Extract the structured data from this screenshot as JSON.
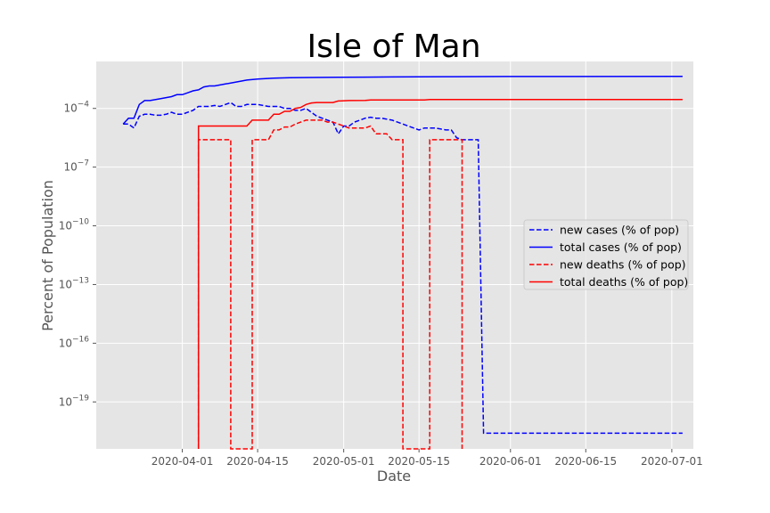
{
  "chart_data": {
    "type": "line",
    "title": "Isle of Man",
    "xlabel": "Date",
    "ylabel": "Percent of Population",
    "x_ticks": [
      "2020-04-01",
      "2020-04-15",
      "2020-05-01",
      "2020-05-15",
      "2020-06-01",
      "2020-06-15",
      "2020-07-01"
    ],
    "y_scale": "log",
    "y_ticks": [
      "10^{-19}",
      "10^{-16}",
      "10^{-13}",
      "10^{-10}",
      "10^{-7}",
      "10^{-4}"
    ],
    "xlim": [
      "2020-03-16",
      "2020-07-05"
    ],
    "ylim_log10": [
      -21.4,
      -1.6
    ],
    "grid": true,
    "legend_position": "center-right",
    "series": [
      {
        "name": "new cases (% of pop)",
        "color": "#0000ff",
        "style": "dashed",
        "points": [
          [
            "2020-03-21",
            -4.8
          ],
          [
            "2020-03-22",
            -4.8
          ],
          [
            "2020-03-23",
            -5.0
          ],
          [
            "2020-03-24",
            -4.4
          ],
          [
            "2020-03-25",
            -4.3
          ],
          [
            "2020-03-26",
            -4.3
          ],
          [
            "2020-03-27",
            -4.35
          ],
          [
            "2020-03-28",
            -4.35
          ],
          [
            "2020-03-29",
            -4.3
          ],
          [
            "2020-03-30",
            -4.2
          ],
          [
            "2020-03-31",
            -4.3
          ],
          [
            "2020-04-01",
            -4.3
          ],
          [
            "2020-04-02",
            -4.2
          ],
          [
            "2020-04-03",
            -4.1
          ],
          [
            "2020-04-04",
            -3.9
          ],
          [
            "2020-04-05",
            -3.9
          ],
          [
            "2020-04-06",
            -3.9
          ],
          [
            "2020-04-07",
            -3.85
          ],
          [
            "2020-04-08",
            -3.9
          ],
          [
            "2020-04-09",
            -3.8
          ],
          [
            "2020-04-10",
            -3.7
          ],
          [
            "2020-04-11",
            -3.9
          ],
          [
            "2020-04-12",
            -3.9
          ],
          [
            "2020-04-13",
            -3.8
          ],
          [
            "2020-04-14",
            -3.8
          ],
          [
            "2020-04-15",
            -3.8
          ],
          [
            "2020-04-16",
            -3.85
          ],
          [
            "2020-04-17",
            -3.9
          ],
          [
            "2020-04-18",
            -3.9
          ],
          [
            "2020-04-19",
            -3.9
          ],
          [
            "2020-04-20",
            -4.0
          ],
          [
            "2020-04-21",
            -4.0
          ],
          [
            "2020-04-22",
            -4.1
          ],
          [
            "2020-04-23",
            -4.1
          ],
          [
            "2020-04-24",
            -4.0
          ],
          [
            "2020-04-25",
            -4.2
          ],
          [
            "2020-04-26",
            -4.4
          ],
          [
            "2020-04-27",
            -4.5
          ],
          [
            "2020-04-28",
            -4.6
          ],
          [
            "2020-04-29",
            -4.7
          ],
          [
            "2020-04-30",
            -5.3
          ],
          [
            "2020-05-01",
            -4.9
          ],
          [
            "2020-05-02",
            -4.9
          ],
          [
            "2020-05-03",
            -4.7
          ],
          [
            "2020-05-04",
            -4.6
          ],
          [
            "2020-05-05",
            -4.5
          ],
          [
            "2020-05-06",
            -4.45
          ],
          [
            "2020-05-07",
            -4.5
          ],
          [
            "2020-05-08",
            -4.5
          ],
          [
            "2020-05-09",
            -4.55
          ],
          [
            "2020-05-10",
            -4.6
          ],
          [
            "2020-05-11",
            -4.7
          ],
          [
            "2020-05-12",
            -4.8
          ],
          [
            "2020-05-13",
            -4.9
          ],
          [
            "2020-05-14",
            -5.0
          ],
          [
            "2020-05-15",
            -5.1
          ],
          [
            "2020-05-16",
            -5.0
          ],
          [
            "2020-05-17",
            -5.0
          ],
          [
            "2020-05-18",
            -5.0
          ],
          [
            "2020-05-19",
            -5.05
          ],
          [
            "2020-05-20",
            -5.1
          ],
          [
            "2020-05-21",
            -5.1
          ],
          [
            "2020-05-22",
            -5.5
          ],
          [
            "2020-05-23",
            -5.6
          ],
          [
            "2020-05-24",
            -5.6
          ],
          [
            "2020-05-25",
            -5.6
          ],
          [
            "2020-05-26",
            -5.6
          ],
          [
            "2020-05-27",
            -20.6
          ],
          [
            "2020-07-03",
            -20.6
          ]
        ]
      },
      {
        "name": "total cases (% of pop)",
        "color": "#0000ff",
        "style": "solid",
        "points": [
          [
            "2020-03-21",
            -4.8
          ],
          [
            "2020-03-22",
            -4.5
          ],
          [
            "2020-03-23",
            -4.5
          ],
          [
            "2020-03-24",
            -3.8
          ],
          [
            "2020-03-25",
            -3.6
          ],
          [
            "2020-03-26",
            -3.6
          ],
          [
            "2020-03-28",
            -3.5
          ],
          [
            "2020-03-30",
            -3.4
          ],
          [
            "2020-03-31",
            -3.3
          ],
          [
            "2020-04-01",
            -3.3
          ],
          [
            "2020-04-02",
            -3.2
          ],
          [
            "2020-04-03",
            -3.1
          ],
          [
            "2020-04-04",
            -3.05
          ],
          [
            "2020-04-05",
            -2.9
          ],
          [
            "2020-04-06",
            -2.85
          ],
          [
            "2020-04-07",
            -2.85
          ],
          [
            "2020-04-09",
            -2.75
          ],
          [
            "2020-04-10",
            -2.7
          ],
          [
            "2020-04-12",
            -2.6
          ],
          [
            "2020-04-13",
            -2.55
          ],
          [
            "2020-04-15",
            -2.5
          ],
          [
            "2020-04-18",
            -2.45
          ],
          [
            "2020-04-21",
            -2.43
          ],
          [
            "2020-04-25",
            -2.42
          ],
          [
            "2020-04-30",
            -2.41
          ],
          [
            "2020-05-05",
            -2.4
          ],
          [
            "2020-05-10",
            -2.39
          ],
          [
            "2020-05-20",
            -2.38
          ],
          [
            "2020-05-31",
            -2.37
          ],
          [
            "2020-07-03",
            -2.36
          ]
        ]
      },
      {
        "name": "new deaths (% of pop)",
        "color": "#ff0000",
        "style": "dashed",
        "points": [
          [
            "2020-04-04",
            -21.4
          ],
          [
            "2020-04-04",
            -5.6
          ],
          [
            "2020-04-10",
            -5.6
          ],
          [
            "2020-04-10",
            -21.4
          ],
          [
            "2020-04-14",
            -21.4
          ],
          [
            "2020-04-14",
            -5.6
          ],
          [
            "2020-04-17",
            -5.6
          ],
          [
            "2020-04-18",
            -5.1
          ],
          [
            "2020-04-19",
            -5.1
          ],
          [
            "2020-04-20",
            -4.95
          ],
          [
            "2020-04-21",
            -4.95
          ],
          [
            "2020-04-22",
            -4.8
          ],
          [
            "2020-04-23",
            -4.7
          ],
          [
            "2020-04-24",
            -4.6
          ],
          [
            "2020-04-25",
            -4.6
          ],
          [
            "2020-04-26",
            -4.6
          ],
          [
            "2020-04-27",
            -4.6
          ],
          [
            "2020-04-28",
            -4.7
          ],
          [
            "2020-04-29",
            -4.7
          ],
          [
            "2020-04-30",
            -4.8
          ],
          [
            "2020-05-01",
            -4.9
          ],
          [
            "2020-05-02",
            -5.0
          ],
          [
            "2020-05-03",
            -5.0
          ],
          [
            "2020-05-04",
            -5.0
          ],
          [
            "2020-05-05",
            -5.0
          ],
          [
            "2020-05-06",
            -4.9
          ],
          [
            "2020-05-07",
            -5.3
          ],
          [
            "2020-05-08",
            -5.3
          ],
          [
            "2020-05-09",
            -5.3
          ],
          [
            "2020-05-10",
            -5.6
          ],
          [
            "2020-05-12",
            -5.6
          ],
          [
            "2020-05-12",
            -21.4
          ],
          [
            "2020-05-17",
            -21.4
          ],
          [
            "2020-05-17",
            -5.6
          ],
          [
            "2020-05-23",
            -5.6
          ],
          [
            "2020-05-23",
            -21.4
          ]
        ]
      },
      {
        "name": "total deaths (% of pop)",
        "color": "#ff0000",
        "style": "solid",
        "points": [
          [
            "2020-04-04",
            -21.4
          ],
          [
            "2020-04-04",
            -4.9
          ],
          [
            "2020-04-13",
            -4.9
          ],
          [
            "2020-04-14",
            -4.6
          ],
          [
            "2020-04-17",
            -4.6
          ],
          [
            "2020-04-18",
            -4.3
          ],
          [
            "2020-04-19",
            -4.3
          ],
          [
            "2020-04-20",
            -4.15
          ],
          [
            "2020-04-21",
            -4.15
          ],
          [
            "2020-04-22",
            -4.0
          ],
          [
            "2020-04-23",
            -3.95
          ],
          [
            "2020-04-24",
            -3.8
          ],
          [
            "2020-04-25",
            -3.72
          ],
          [
            "2020-04-26",
            -3.7
          ],
          [
            "2020-04-29",
            -3.7
          ],
          [
            "2020-04-30",
            -3.62
          ],
          [
            "2020-05-02",
            -3.6
          ],
          [
            "2020-05-05",
            -3.59
          ],
          [
            "2020-05-06",
            -3.57
          ],
          [
            "2020-05-12",
            -3.57
          ],
          [
            "2020-05-16",
            -3.57
          ],
          [
            "2020-05-17",
            -3.55
          ],
          [
            "2020-05-23",
            -3.55
          ],
          [
            "2020-07-03",
            -3.55
          ]
        ]
      }
    ]
  }
}
